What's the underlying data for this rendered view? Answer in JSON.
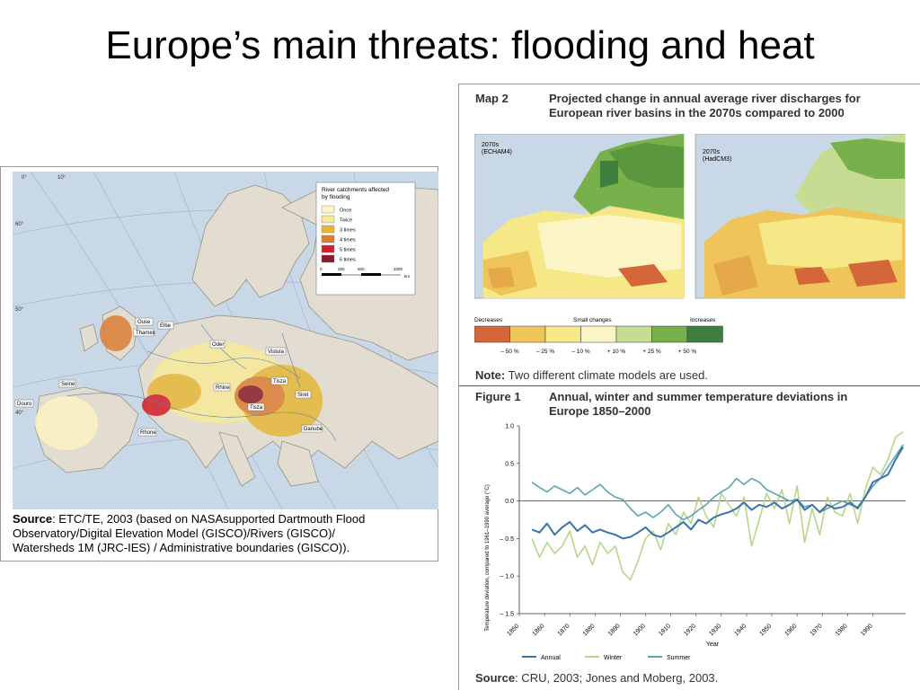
{
  "title": "Europe’s main threats: flooding and heat",
  "flood_map": {
    "legend_title_1": "River catchments affected",
    "legend_title_2": "by flooding",
    "legend_items": [
      {
        "label": "Once",
        "color": "#fdf3c4"
      },
      {
        "label": "Twice",
        "color": "#f7e99a"
      },
      {
        "label": "3 times",
        "color": "#e6b739"
      },
      {
        "label": "4 times",
        "color": "#dc7e35"
      },
      {
        "label": "5 times",
        "color": "#d11f2c"
      },
      {
        "label": "6 times",
        "color": "#8b1d2a"
      }
    ],
    "scale_labels": [
      "0",
      "250",
      "500",
      "1000"
    ],
    "scale_unit": "km",
    "river_labels": [
      "Ouse",
      "Elbe",
      "Thames",
      "Oder",
      "Vistula",
      "Seine",
      "Tisza",
      "Rhine",
      "Rhone",
      "Tisza",
      "Danube",
      "Douro",
      "Siret"
    ],
    "lat_labels": [
      "60°",
      "50°",
      "40°",
      "10°",
      "0°"
    ],
    "source_label": "Source",
    "source_text_1": ": ETC/TE, 2003 (based on NASAsupported Dartmouth Flood",
    "source_text_2": "Observatory/Digital Elevation Model (GISCO)/Rivers (GISCO)/",
    "source_text_3": "Watersheds 1M (JRC-IES) / Administrative boundaries (GISCO))."
  },
  "map2": {
    "label": "Map 2",
    "title_1": "Projected change in annual average river discharges for",
    "title_2": "European river basins in the 2070s compared to 2000",
    "panel_a_1": "2070s",
    "panel_a_2": "(ECHAM4)",
    "panel_b_1": "2070s",
    "panel_b_2": "(HadCM3)",
    "legend_left": "Decreases",
    "legend_mid": "Small changes",
    "legend_right": "Increases",
    "legend_colors": [
      "#d4673a",
      "#efc55a",
      "#f7e887",
      "#fbf5c6",
      "#c6dc93",
      "#78b04c",
      "#3e7f3d"
    ],
    "legend_ticks": [
      "– 50 %",
      "– 25 %",
      "– 10 %",
      "+ 10 %",
      "+ 25 %",
      "+ 50 %"
    ],
    "note_label": "Note:",
    "note_text": " Two different climate models are used."
  },
  "figure1": {
    "label": "Figure 1",
    "title_1": "Annual, winter and summer temperature deviations in",
    "title_2": "Europe 1850–2000",
    "source_label": "Source",
    "source_text": ": CRU, 2003; Jones and Moberg, 2003."
  },
  "chart_data": {
    "type": "line",
    "title": "Annual, winter and summer temperature deviations in Europe 1850–2000",
    "xlabel": "Year",
    "ylabel": "Temperature deviation, compared to 1961–1990 average (°C)",
    "xlim": [
      1850,
      2003
    ],
    "ylim": [
      -1.5,
      1.0
    ],
    "x_ticks": [
      "1850",
      "1860",
      "1870",
      "1880",
      "1890",
      "1900",
      "1910",
      "1920",
      "1930",
      "1940",
      "1950",
      "1960",
      "1970",
      "1980",
      "1990"
    ],
    "y_ticks": [
      "1.0",
      "0.5",
      "0.0",
      "– 0.5",
      "– 1.0",
      "– 1.5"
    ],
    "y_tick_values": [
      1.0,
      0.5,
      0.0,
      -0.5,
      -1.0,
      -1.5
    ],
    "legend_position": "bottom",
    "series": [
      {
        "name": "Annual",
        "color": "#3a73a8",
        "x": [
          1855,
          1858,
          1861,
          1864,
          1867,
          1870,
          1873,
          1876,
          1879,
          1882,
          1885,
          1888,
          1891,
          1894,
          1897,
          1900,
          1903,
          1906,
          1909,
          1912,
          1915,
          1918,
          1921,
          1924,
          1927,
          1930,
          1933,
          1936,
          1939,
          1942,
          1945,
          1948,
          1951,
          1954,
          1957,
          1960,
          1963,
          1966,
          1969,
          1972,
          1975,
          1978,
          1981,
          1984,
          1987,
          1990,
          1993,
          1996,
          1999,
          2002
        ],
        "values": [
          -0.38,
          -0.42,
          -0.3,
          -0.45,
          -0.35,
          -0.28,
          -0.4,
          -0.32,
          -0.42,
          -0.38,
          -0.42,
          -0.45,
          -0.5,
          -0.48,
          -0.42,
          -0.35,
          -0.45,
          -0.48,
          -0.42,
          -0.35,
          -0.28,
          -0.38,
          -0.25,
          -0.3,
          -0.22,
          -0.18,
          -0.15,
          -0.1,
          -0.02,
          -0.12,
          -0.05,
          -0.08,
          -0.02,
          -0.1,
          -0.05,
          0.02,
          -0.12,
          -0.05,
          -0.15,
          -0.05,
          -0.1,
          -0.08,
          -0.02,
          -0.1,
          0.05,
          0.25,
          0.3,
          0.35,
          0.55,
          0.72
        ]
      },
      {
        "name": "Winter",
        "color": "#b8d58a",
        "x": [
          1855,
          1858,
          1861,
          1864,
          1867,
          1870,
          1873,
          1876,
          1879,
          1882,
          1885,
          1888,
          1891,
          1894,
          1897,
          1900,
          1903,
          1906,
          1909,
          1912,
          1915,
          1918,
          1921,
          1924,
          1927,
          1930,
          1933,
          1936,
          1939,
          1942,
          1945,
          1948,
          1951,
          1954,
          1957,
          1960,
          1963,
          1966,
          1969,
          1972,
          1975,
          1978,
          1981,
          1984,
          1987,
          1990,
          1993,
          1996,
          1999,
          2002
        ],
        "values": [
          -0.5,
          -0.75,
          -0.55,
          -0.7,
          -0.6,
          -0.4,
          -0.75,
          -0.6,
          -0.85,
          -0.55,
          -0.7,
          -0.6,
          -0.95,
          -1.05,
          -0.8,
          -0.5,
          -0.4,
          -0.65,
          -0.3,
          -0.45,
          -0.15,
          -0.3,
          0.05,
          -0.2,
          -0.35,
          0.1,
          -0.05,
          -0.2,
          0.05,
          -0.6,
          -0.25,
          0.1,
          -0.1,
          0.15,
          -0.3,
          0.2,
          -0.55,
          -0.1,
          -0.45,
          0.05,
          -0.15,
          -0.2,
          0.1,
          -0.3,
          0.15,
          0.45,
          0.35,
          0.55,
          0.85,
          0.92
        ]
      },
      {
        "name": "Summer",
        "color": "#5aa5b0",
        "x": [
          1855,
          1858,
          1861,
          1864,
          1867,
          1870,
          1873,
          1876,
          1879,
          1882,
          1885,
          1888,
          1891,
          1894,
          1897,
          1900,
          1903,
          1906,
          1909,
          1912,
          1915,
          1918,
          1921,
          1924,
          1927,
          1930,
          1933,
          1936,
          1939,
          1942,
          1945,
          1948,
          1951,
          1954,
          1957,
          1960,
          1963,
          1966,
          1969,
          1972,
          1975,
          1978,
          1981,
          1984,
          1987,
          1990,
          1993,
          1996,
          1999,
          2002
        ],
        "values": [
          0.25,
          0.18,
          0.12,
          0.2,
          0.15,
          0.1,
          0.18,
          0.08,
          0.15,
          0.22,
          0.12,
          0.05,
          0.02,
          -0.1,
          -0.2,
          -0.15,
          -0.22,
          -0.15,
          -0.05,
          -0.18,
          -0.25,
          -0.2,
          -0.12,
          -0.05,
          0.05,
          0.12,
          0.18,
          0.3,
          0.22,
          0.3,
          0.25,
          0.15,
          0.1,
          0.05,
          0.0,
          0.02,
          -0.08,
          -0.05,
          -0.15,
          -0.1,
          -0.05,
          0.0,
          -0.05,
          -0.08,
          0.05,
          0.2,
          0.3,
          0.45,
          0.6,
          0.75
        ]
      }
    ]
  }
}
